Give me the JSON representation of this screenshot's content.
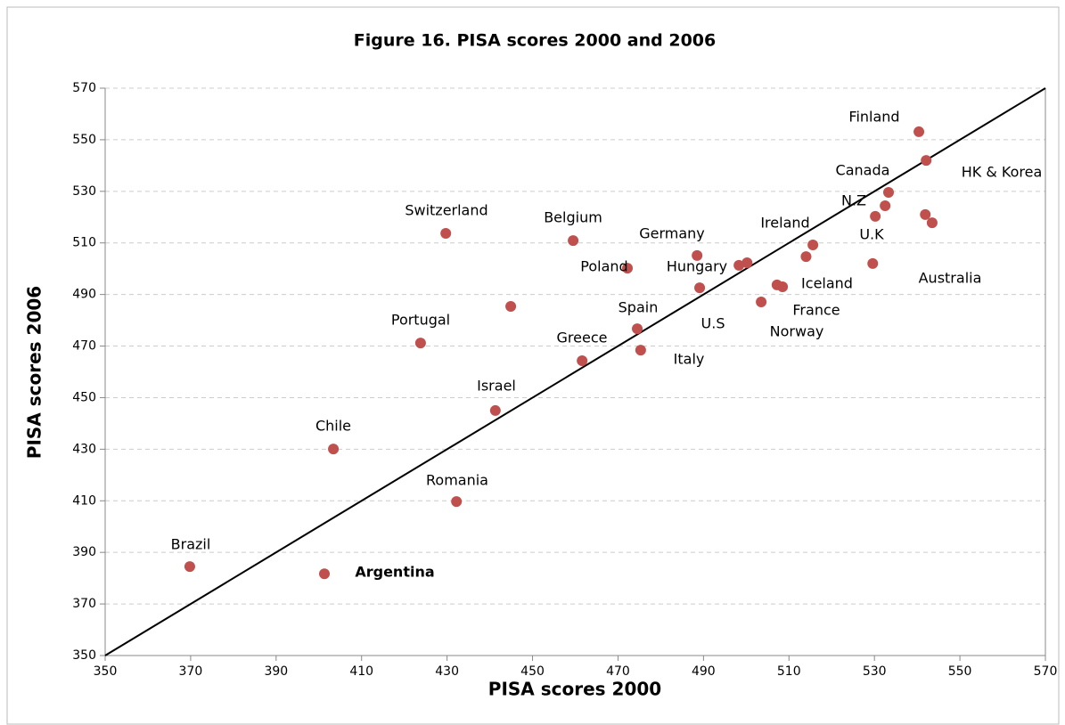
{
  "chart_data": {
    "type": "scatter",
    "title": "Figure 16. PISA scores 2000 and 2006",
    "x_label": "PISA scores 2000",
    "y_label": "PISA scores 2006",
    "color": "#c0504d",
    "grid": true,
    "xlim": [
      350,
      570
    ],
    "ylim": [
      350,
      570
    ],
    "xticks": [
      350,
      370,
      390,
      410,
      430,
      450,
      470,
      490,
      510,
      530,
      550,
      570
    ],
    "yticks": [
      350,
      370,
      390,
      410,
      430,
      450,
      470,
      490,
      510,
      530,
      550,
      570
    ],
    "x": [
      540.4,
      542.1,
      533.3,
      532.5,
      530.2,
      541.9,
      543.5,
      529.6,
      515.6,
      514.0,
      507.2,
      508.5,
      503.5,
      500.2,
      498.3,
      489.1,
      488.5,
      472.2,
      459.5,
      429.7,
      444.9,
      474.5,
      475.3,
      461.6,
      423.8,
      441.3,
      403.4,
      432.2,
      369.8,
      401.3
    ],
    "y": [
      553.1,
      542.0,
      529.6,
      524.4,
      520.3,
      521.0,
      517.8,
      502.0,
      509.2,
      504.7,
      493.7,
      493.0,
      487.1,
      502.3,
      501.3,
      492.6,
      505.1,
      500.2,
      510.9,
      513.7,
      485.4,
      476.7,
      468.4,
      464.3,
      471.2,
      445.0,
      430.1,
      409.7,
      384.5,
      381.7
    ],
    "reference_line": {
      "x": [
        350,
        570
      ],
      "y": [
        350,
        570
      ]
    },
    "annotations": [
      "Finland",
      "HK & Korea",
      "Canada",
      "N.Z",
      "U.K",
      "Ireland",
      "Australia",
      "Iceland",
      "France",
      "Norway",
      "U.S",
      "Switzerland",
      "Belgium",
      "Germany",
      "Poland",
      "Hungary",
      "Spain",
      "Greece",
      "Italy",
      "Portugal",
      "Israel",
      "Chile",
      "Romania",
      "Brazil",
      "Argentina"
    ]
  }
}
